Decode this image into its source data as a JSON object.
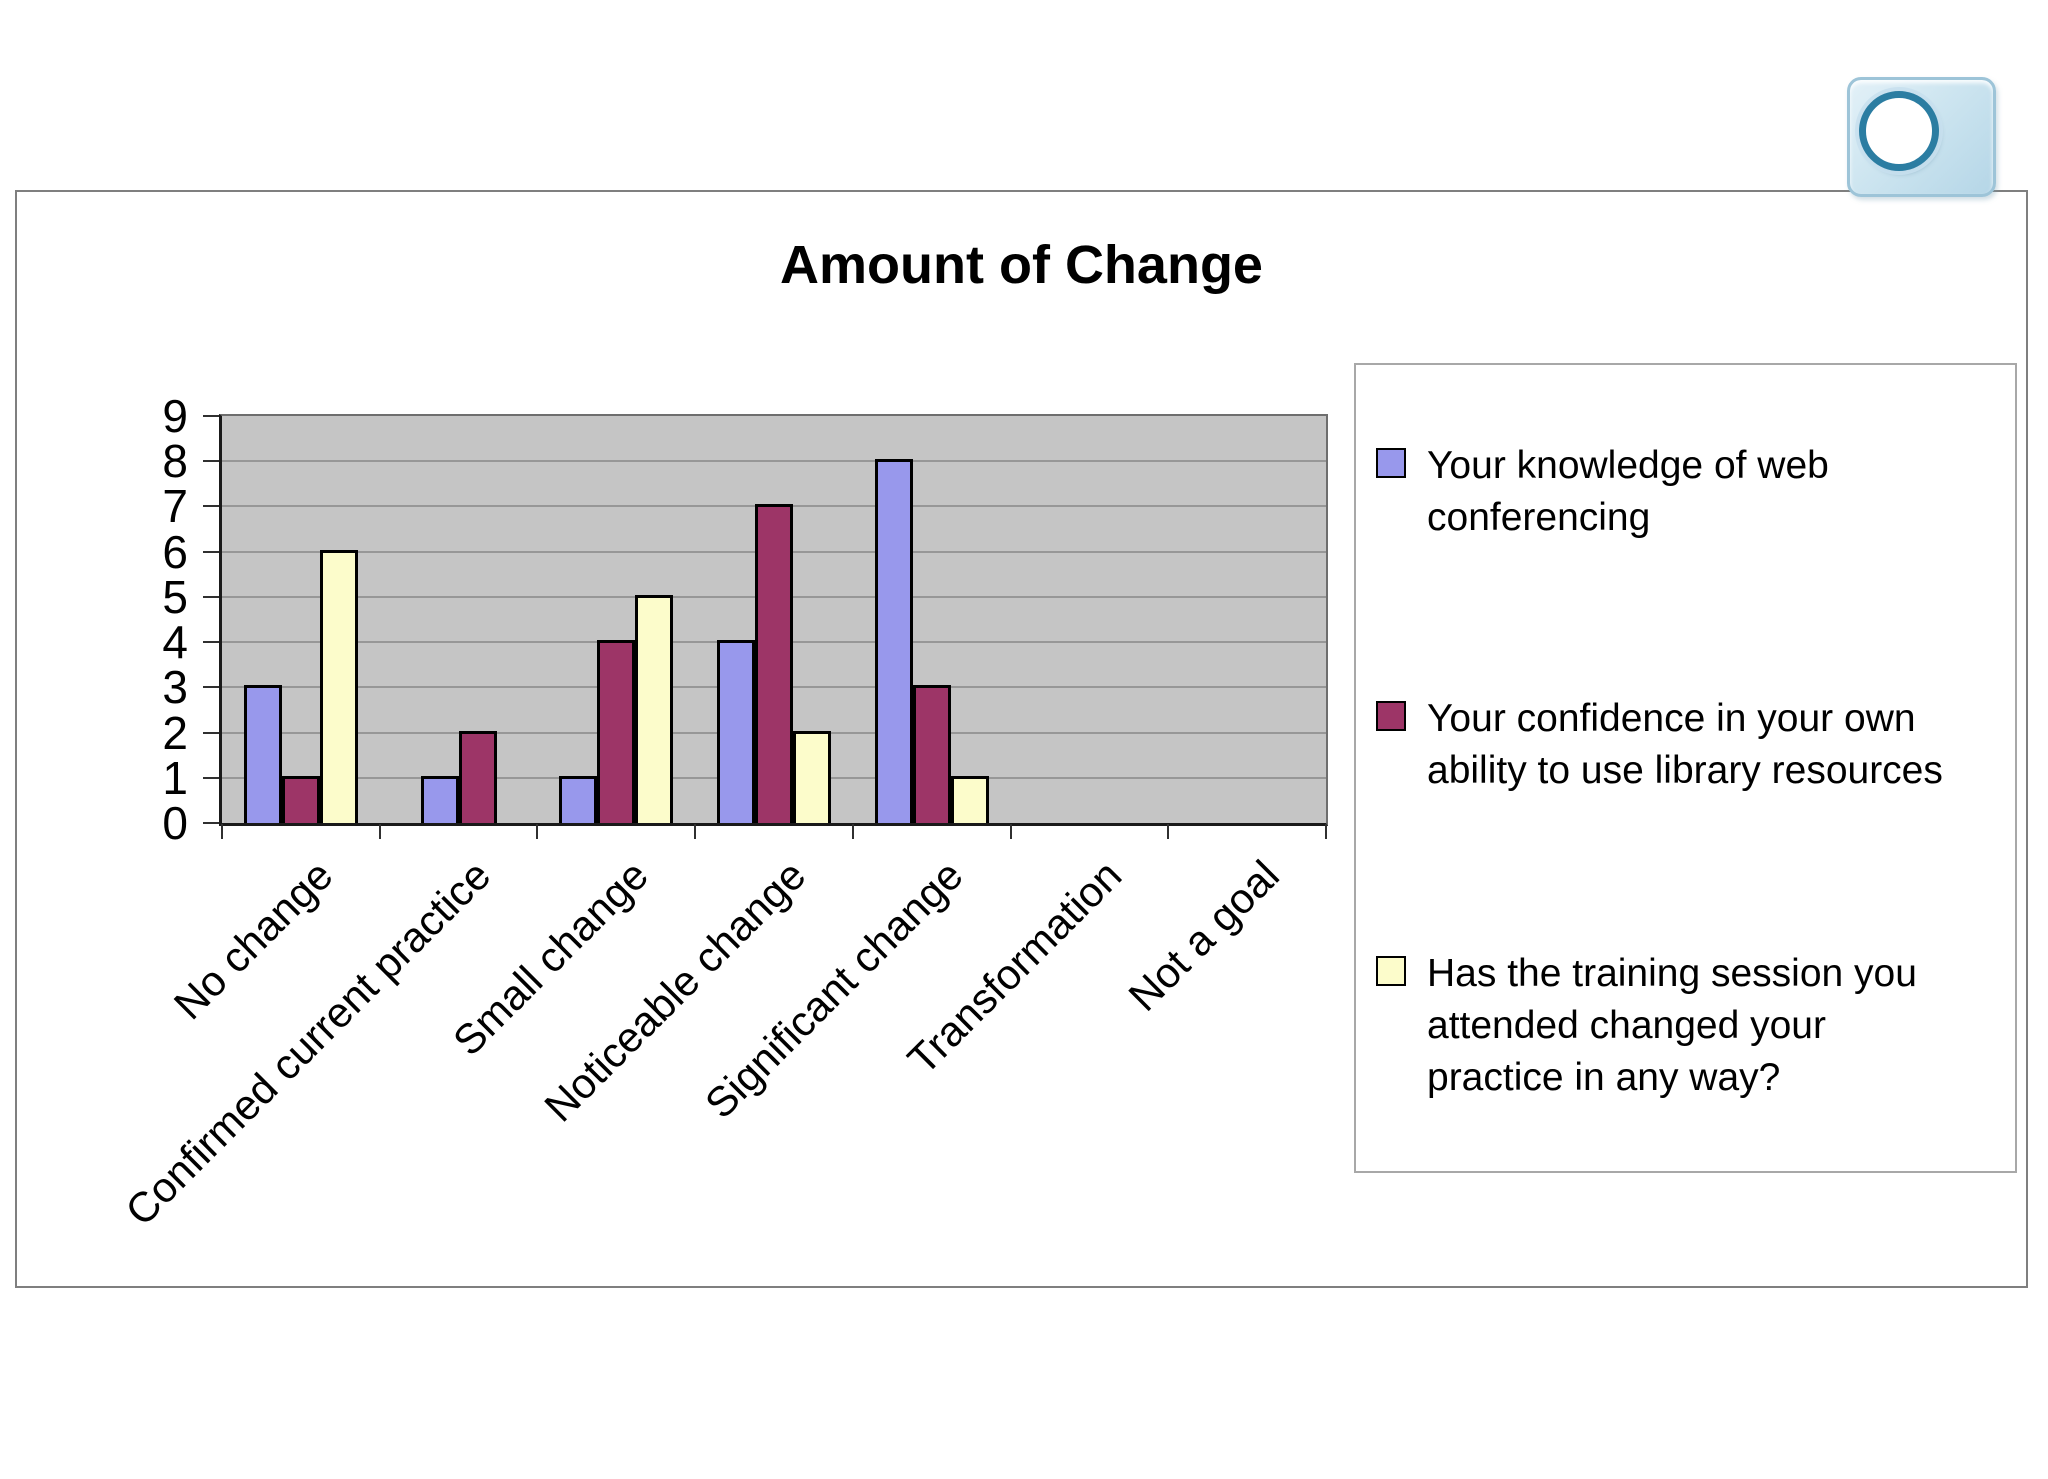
{
  "window": {
    "background": "#ffffff"
  },
  "icon": {
    "name": "record-bubble-icon"
  },
  "chart_data": {
    "type": "bar",
    "title": "Amount of Change",
    "categories": [
      "No change",
      "Confirmed current practice",
      "Small change",
      "Noticeable change",
      "Significant change",
      "Transformation",
      "Not a goal"
    ],
    "series": [
      {
        "name": "Your knowledge of web conferencing",
        "color": "#9898EC",
        "values": [
          3,
          1,
          1,
          4,
          8,
          0,
          0
        ]
      },
      {
        "name": "Your confidence in your own ability to use library resources",
        "color": "#9D3567",
        "values": [
          1,
          2,
          4,
          7,
          3,
          0,
          0
        ]
      },
      {
        "name": "Has the training session you attended changed your practice in any way?",
        "color": "#FCFCCB",
        "values": [
          6,
          0,
          5,
          2,
          1,
          0,
          0
        ]
      }
    ],
    "xlabel": "",
    "ylabel": "",
    "ylim": [
      0,
      9
    ],
    "yticks": [
      0,
      1,
      2,
      3,
      4,
      5,
      6,
      7,
      8,
      9
    ],
    "grid": true,
    "legend_position": "right",
    "plot_background": "#C5C5C5",
    "bar_border_color": "#000000"
  }
}
